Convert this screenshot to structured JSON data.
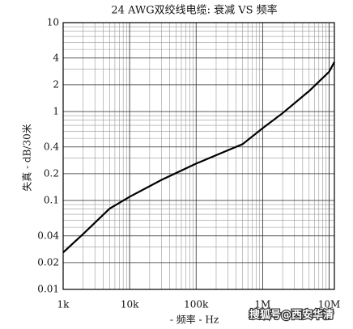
{
  "chart_data": {
    "type": "line",
    "title": "24 AWG双绞线电缆: 衰减 VS 频率",
    "x_label": "- 频率 - Hz",
    "y_label": "失真 - dB/30米",
    "watermark": "搜狐号@西安华清",
    "log_x": true,
    "log_y": true,
    "grid": true,
    "xlim": [
      1000,
      12000000
    ],
    "ylim": [
      0.01,
      10
    ],
    "xticks": [
      {
        "value": 1000,
        "label": "1k"
      },
      {
        "value": 10000,
        "label": "10k"
      },
      {
        "value": 100000,
        "label": "100k"
      },
      {
        "value": 1000000,
        "label": "1M"
      },
      {
        "value": 10000000,
        "label": "10M"
      }
    ],
    "yticks": [
      0.01,
      0.02,
      0.04,
      0.1,
      0.2,
      0.4,
      1,
      2,
      4,
      10
    ],
    "x": [
      1000,
      2000,
      5000,
      10000,
      30000,
      100000,
      500000,
      1000000,
      2000000,
      5000000,
      10000000,
      12000000
    ],
    "series": [
      {
        "name": "24 AWG",
        "color": "#000000",
        "values": [
          0.026,
          0.042,
          0.081,
          0.11,
          0.17,
          0.26,
          0.43,
          0.65,
          0.96,
          1.7,
          2.8,
          3.6
        ]
      }
    ]
  }
}
